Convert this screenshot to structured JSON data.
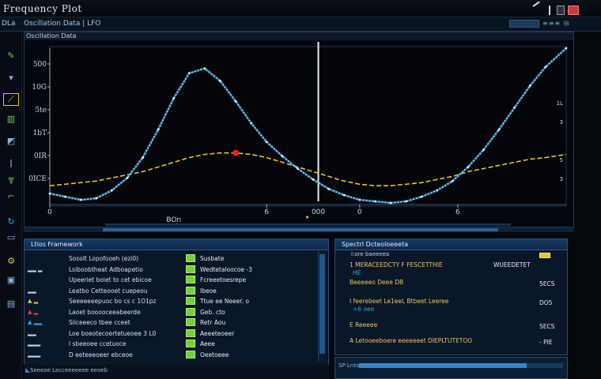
{
  "app": {
    "title": "Frequency Plot"
  },
  "toolbar": {
    "left_label": "DLa",
    "path": "Oscillation Data | LFO",
    "controls": "≡≡≡ ⊟"
  },
  "chart_panel": {
    "header": "Oscillation Data"
  },
  "chart_data": {
    "type": "line",
    "x_ticks": [
      "0",
      "6",
      "0",
      "6"
    ],
    "x_axis_label": "BOn",
    "marker_label": "000",
    "y_ticks": [
      "500",
      "10G",
      "5te",
      "1bT",
      "0IR",
      "0ICE"
    ],
    "x": [
      0,
      0.03,
      0.06,
      0.09,
      0.12,
      0.15,
      0.18,
      0.21,
      0.24,
      0.27,
      0.3,
      0.33,
      0.36,
      0.39,
      0.42,
      0.45,
      0.48,
      0.51,
      0.54,
      0.57,
      0.6,
      0.63,
      0.66,
      0.69,
      0.72,
      0.75,
      0.78,
      0.81,
      0.84,
      0.87,
      0.9,
      0.93,
      0.96,
      1.0
    ],
    "series": [
      {
        "values": [
          0.07,
          0.05,
          0.03,
          0.04,
          0.09,
          0.17,
          0.3,
          0.48,
          0.68,
          0.84,
          0.87,
          0.79,
          0.66,
          0.52,
          0.4,
          0.31,
          0.23,
          0.16,
          0.1,
          0.06,
          0.03,
          0.02,
          0.01,
          0.02,
          0.05,
          0.09,
          0.15,
          0.24,
          0.35,
          0.48,
          0.62,
          0.76,
          0.88,
          1.0
        ]
      },
      {
        "values": [
          0.12,
          0.13,
          0.14,
          0.15,
          0.17,
          0.19,
          0.21,
          0.24,
          0.27,
          0.3,
          0.32,
          0.33,
          0.33,
          0.32,
          0.3,
          0.27,
          0.24,
          0.21,
          0.18,
          0.15,
          0.13,
          0.12,
          0.12,
          0.13,
          0.14,
          0.16,
          0.18,
          0.21,
          0.23,
          0.25,
          0.27,
          0.29,
          0.3,
          0.32
        ]
      }
    ],
    "colors": {
      "curve": "#2ea6e6",
      "curve_glow": "#9fe2ff",
      "trend": "#e8c32a",
      "marker": "#ff1c1c",
      "cursor": "#e7eef7"
    },
    "cursor_x": 0.52,
    "marker_x": 0.36,
    "right_axis_ticks": [
      "1L",
      "3",
      "",
      "5",
      "3"
    ]
  },
  "left_panel": {
    "title": "Ltios Framework",
    "rows": [
      {
        "label": "Sosolt Lopofooeh (ezi0)",
        "value": "Susbate",
        "mark": ""
      },
      {
        "label": "Lsiboobtheat Adboapetio",
        "value": "Wedtetaloocoe -3",
        "mark": ""
      },
      {
        "label": "Upeeriet boiet to cet ebicoe",
        "value": "Fcreeetoesrepe",
        "mark": ""
      },
      {
        "label": "Leatbo Cetteooet cuepeou",
        "value": "Ibeoe",
        "mark": ""
      },
      {
        "label": "Seeeeeeepuoc bo cs c 1O1pz",
        "value": "Ttue ee Neeer. o",
        "mark": ""
      },
      {
        "label": "Laoet booooceeabeerde",
        "value": "Geb. cto",
        "mark": ""
      },
      {
        "label": "Siiceeeco tbee cceet",
        "value": "Retr Aou",
        "mark": ""
      },
      {
        "label": "Loe boeotecoertetueoee 3 L0",
        "value": "Aeeeteoeer",
        "mark": ""
      },
      {
        "label": "l sbeeoee ccetuoce",
        "value": "Aeee",
        "mark": ""
      },
      {
        "label": "D eeteeeoeer ebceoe",
        "value": "Oeetoeee",
        "mark": ""
      }
    ],
    "footer": "Seeeoe Lecceeeeeee eeoeb"
  },
  "right_panel": {
    "title": "Spectrl Dcteoloeeeta",
    "subtitle": "I:ore baeeeea",
    "rows": [
      {
        "main": "1 MERACEEDCTY  F  FESCETTHIE",
        "side": "WUEEDETET",
        "sub": "HE    ",
        "val": ""
      },
      {
        "main": "Beeeeeo Deee  DB",
        "side": "",
        "sub": "",
        "val": "5ECS"
      },
      {
        "main": "I feerebeet  Le1eeL  Btbeet Leeree",
        "side": "",
        "sub": "+6  oee",
        "val": "DO5"
      },
      {
        "main": "E Reeeee",
        "side": "",
        "sub": "",
        "val": "5ECS"
      },
      {
        "main": "A  Letooeeboere  eeeeeeet  DIEPLTUTETOO",
        "side": "",
        "sub": "",
        "val": "- PIE"
      }
    ],
    "footer_label": "SP Lnto",
    "footer_progress": 0.82,
    "badge": "—"
  }
}
